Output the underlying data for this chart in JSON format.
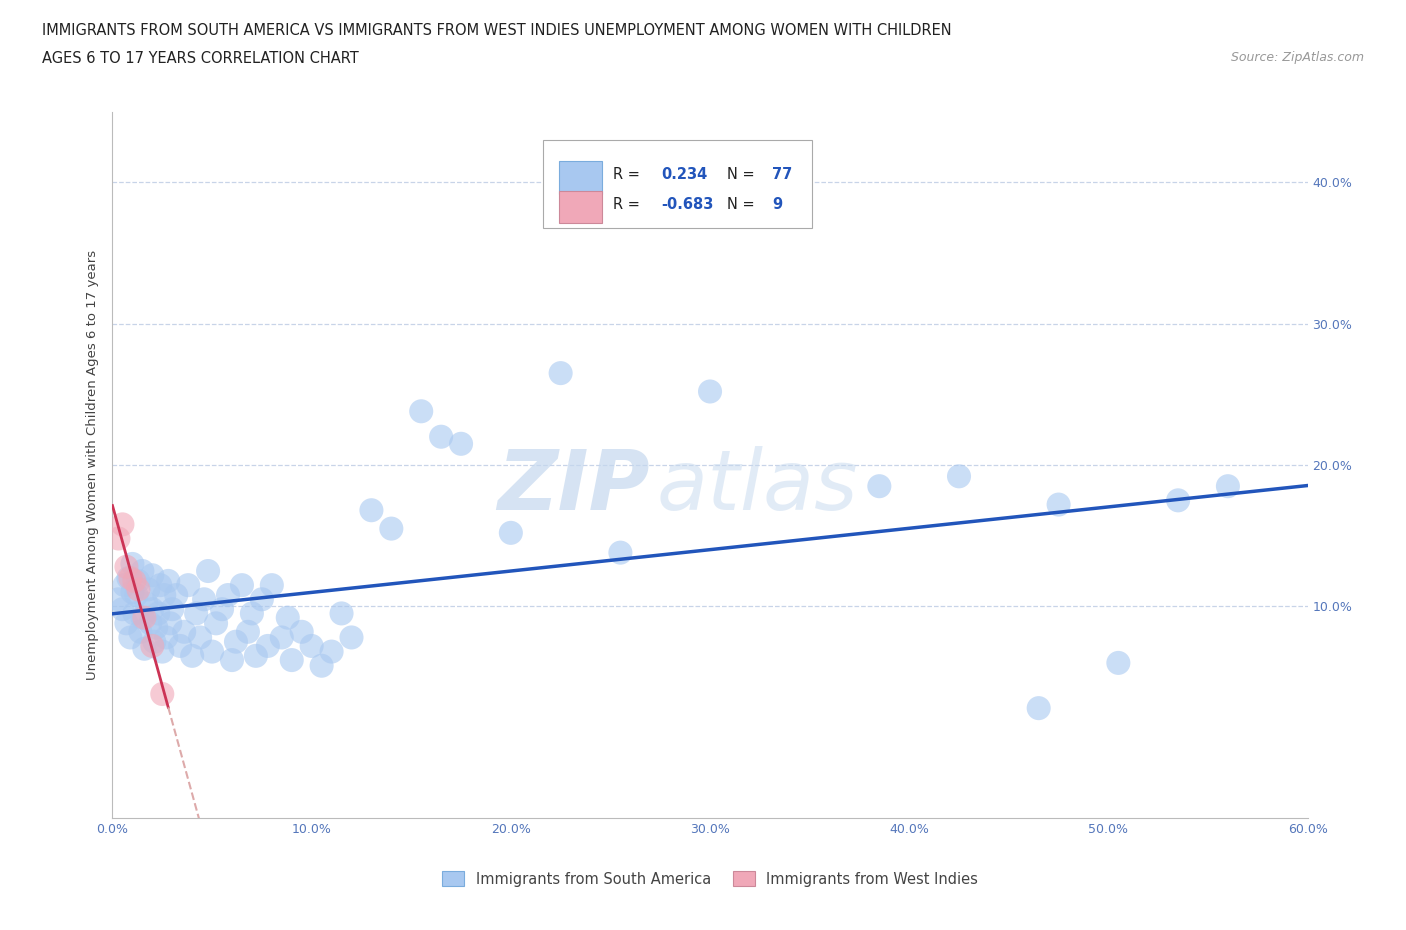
{
  "title_line1": "IMMIGRANTS FROM SOUTH AMERICA VS IMMIGRANTS FROM WEST INDIES UNEMPLOYMENT AMONG WOMEN WITH CHILDREN",
  "title_line2": "AGES 6 TO 17 YEARS CORRELATION CHART",
  "source": "Source: ZipAtlas.com",
  "xlim": [
    0.0,
    0.6
  ],
  "ylim": [
    -0.05,
    0.45
  ],
  "watermark": "ZIPatlas",
  "R_south_america": 0.234,
  "N_south_america": 77,
  "R_west_indies": -0.683,
  "N_west_indies": 9,
  "south_america_color": "#a8c8f0",
  "west_indies_color": "#f0a8b8",
  "trend_sa_color": "#2255bb",
  "trend_wi_color": "#cc3355",
  "trend_wi_dash_color": "#ddaaaa",
  "background_color": "#ffffff",
  "grid_color": "#c8d4e8",
  "ylabel": "Unemployment Among Women with Children Ages 6 to 17 years",
  "legend_label_sa": "Immigrants from South America",
  "legend_label_wi": "Immigrants from West Indies",
  "sa_x": [
    0.003,
    0.005,
    0.006,
    0.007,
    0.008,
    0.009,
    0.01,
    0.01,
    0.011,
    0.012,
    0.013,
    0.014,
    0.015,
    0.015,
    0.016,
    0.017,
    0.018,
    0.019,
    0.02,
    0.02,
    0.021,
    0.022,
    0.023,
    0.024,
    0.025,
    0.026,
    0.027,
    0.028,
    0.029,
    0.03,
    0.032,
    0.034,
    0.036,
    0.038,
    0.04,
    0.042,
    0.044,
    0.046,
    0.048,
    0.05,
    0.052,
    0.055,
    0.058,
    0.06,
    0.062,
    0.065,
    0.068,
    0.07,
    0.072,
    0.075,
    0.078,
    0.08,
    0.085,
    0.088,
    0.09,
    0.095,
    0.1,
    0.105,
    0.11,
    0.115,
    0.12,
    0.13,
    0.14,
    0.155,
    0.165,
    0.175,
    0.2,
    0.225,
    0.255,
    0.3,
    0.385,
    0.425,
    0.465,
    0.475,
    0.505,
    0.535,
    0.56
  ],
  "sa_y": [
    0.105,
    0.098,
    0.115,
    0.088,
    0.12,
    0.078,
    0.11,
    0.13,
    0.095,
    0.108,
    0.118,
    0.082,
    0.092,
    0.125,
    0.07,
    0.102,
    0.112,
    0.088,
    0.098,
    0.122,
    0.075,
    0.085,
    0.095,
    0.115,
    0.068,
    0.108,
    0.078,
    0.118,
    0.088,
    0.098,
    0.108,
    0.072,
    0.082,
    0.115,
    0.065,
    0.095,
    0.078,
    0.105,
    0.125,
    0.068,
    0.088,
    0.098,
    0.108,
    0.062,
    0.075,
    0.115,
    0.082,
    0.095,
    0.065,
    0.105,
    0.072,
    0.115,
    0.078,
    0.092,
    0.062,
    0.082,
    0.072,
    0.058,
    0.068,
    0.095,
    0.078,
    0.168,
    0.155,
    0.238,
    0.22,
    0.215,
    0.152,
    0.265,
    0.138,
    0.252,
    0.185,
    0.192,
    0.028,
    0.172,
    0.06,
    0.175,
    0.185
  ],
  "wi_x": [
    0.003,
    0.005,
    0.007,
    0.009,
    0.011,
    0.013,
    0.016,
    0.02,
    0.025
  ],
  "wi_y": [
    0.148,
    0.158,
    0.128,
    0.12,
    0.118,
    0.112,
    0.092,
    0.072,
    0.038
  ],
  "wi_trend_x0": 0.0,
  "wi_trend_x1": 0.055,
  "sa_trend_x0": 0.0,
  "sa_trend_x1": 0.6
}
